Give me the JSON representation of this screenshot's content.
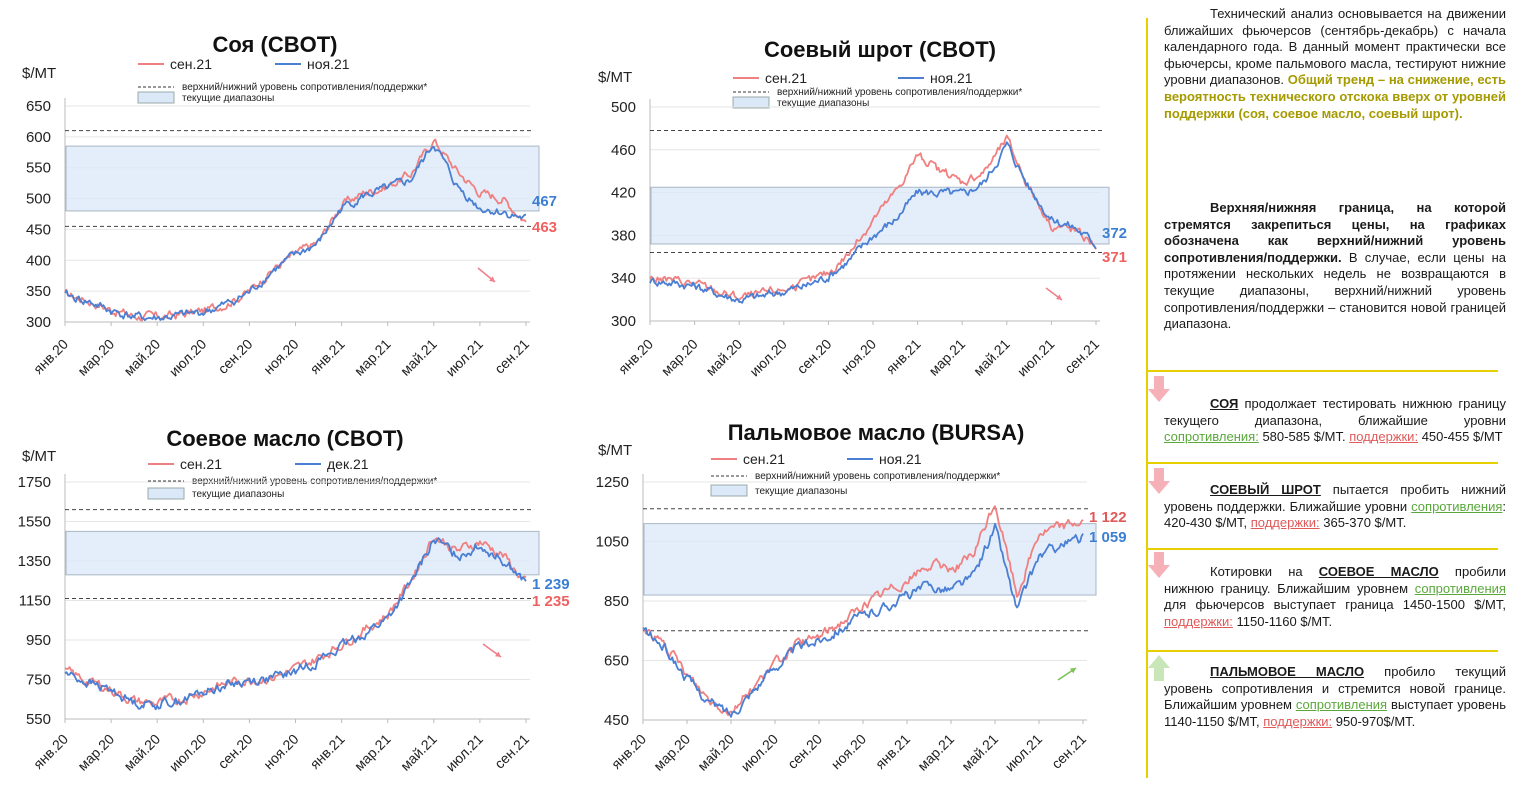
{
  "colors": {
    "red": "#f08080",
    "blue": "#4a7fd4",
    "band": "#dbe8f8",
    "down_arrow": "#f0808c",
    "up_arrow": "#7ac255",
    "divider": "#e8d000"
  },
  "charts": [
    {
      "id": "soy",
      "title": "Соя (CBOT)",
      "unit": "$/MT",
      "legend": {
        "s1": "сен.21",
        "s2": "ноя.21",
        "dash": "верхний/нижний уровень сопротивления/поддержки*",
        "band": "текущие диапазоны"
      },
      "yticks": [
        "650",
        "600",
        "550",
        "500",
        "450",
        "400",
        "350",
        "300"
      ],
      "xticks": [
        "янв.20",
        "мар.20",
        "май.20",
        "июл.20",
        "сен.20",
        "ноя.20",
        "янв.21",
        "мар.21",
        "май.21",
        "июл.21",
        "сен.21"
      ],
      "end_blue": "467",
      "end_red": "463",
      "trend": "down"
    },
    {
      "id": "meal",
      "title": "Соевый шрот (CBOT)",
      "unit": "$/MT",
      "legend": {
        "s1": "сен.21",
        "s2": "ноя.21",
        "dash": "верхний/нижний уровень сопротивления/поддержки*",
        "band": "текущие диапазоны"
      },
      "yticks": [
        "500",
        "460",
        "420",
        "380",
        "340",
        "300"
      ],
      "xticks": [
        "янв.20",
        "мар.20",
        "май.20",
        "июл.20",
        "сен.20",
        "ноя.20",
        "янв.21",
        "мар.21",
        "май.21",
        "июл.21",
        "сен.21"
      ],
      "end_blue": "372",
      "end_red": "371",
      "trend": "down"
    },
    {
      "id": "oil",
      "title": "Соевое масло (CBOT)",
      "unit": "$/MT",
      "legend": {
        "s1": "сен.21",
        "s2": "дек.21",
        "dash": "верхний/нижний уровень сопротивления/поддержки*",
        "band": "текущие диапазоны"
      },
      "yticks": [
        "1750",
        "1550",
        "1350",
        "1150",
        "950",
        "750",
        "550"
      ],
      "xticks": [
        "янв.20",
        "мар.20",
        "май.20",
        "июл.20",
        "сен.20",
        "ноя.20",
        "янв.21",
        "мар.21",
        "май.21",
        "июл.21",
        "сен.21"
      ],
      "end_blue": "1 239",
      "end_red": "1 235",
      "trend": "down"
    },
    {
      "id": "palm",
      "title": "Пальмовое масло (BURSA)",
      "unit": "$/MT",
      "legend": {
        "s1": "сен.21",
        "s2": "ноя.21",
        "dash": "верхний/нижний уровень сопротивления/поддержки*",
        "band": "текущие диапазоны"
      },
      "yticks": [
        "1250",
        "1050",
        "850",
        "650",
        "450"
      ],
      "xticks": [
        "янв.20",
        "мар.20",
        "май.20",
        "июл.20",
        "сен.20",
        "ноя.20",
        "янв.21",
        "мар.21",
        "май.21",
        "июл.21",
        "сен.21"
      ],
      "end_red": "1 122",
      "end_blue": "1 059",
      "trend": "up"
    }
  ],
  "chart_data": [
    {
      "type": "line",
      "title": "Соя (CBOT)",
      "ylabel": "$/MT",
      "ylim": [
        300,
        650
      ],
      "xlim": [
        "2020-01",
        "2021-09"
      ],
      "x": [
        "2020-01",
        "2020-02",
        "2020-03",
        "2020-04",
        "2020-05",
        "2020-06",
        "2020-07",
        "2020-08",
        "2020-09",
        "2020-10",
        "2020-11",
        "2020-12",
        "2021-01",
        "2021-02",
        "2021-03",
        "2021-04",
        "2021-05",
        "2021-06",
        "2021-07",
        "2021-08",
        "2021-09"
      ],
      "series": [
        {
          "name": "сен.21",
          "values": [
            345,
            335,
            320,
            310,
            308,
            312,
            318,
            330,
            350,
            385,
            410,
            430,
            490,
            510,
            520,
            540,
            595,
            545,
            510,
            500,
            463
          ]
        },
        {
          "name": "ноя.21",
          "values": [
            343,
            333,
            318,
            308,
            306,
            310,
            316,
            328,
            348,
            383,
            408,
            428,
            485,
            505,
            515,
            530,
            590,
            520,
            485,
            478,
            467
          ]
        }
      ],
      "resistance": 610,
      "support": 455,
      "range": [
        480,
        585
      ]
    },
    {
      "type": "line",
      "title": "Соевый шрот (CBOT)",
      "ylabel": "$/MT",
      "ylim": [
        300,
        500
      ],
      "xlim": [
        "2020-01",
        "2021-09"
      ],
      "x": [
        "2020-01",
        "2020-02",
        "2020-03",
        "2020-04",
        "2020-05",
        "2020-06",
        "2020-07",
        "2020-08",
        "2020-09",
        "2020-10",
        "2020-11",
        "2020-12",
        "2021-01",
        "2021-02",
        "2021-03",
        "2021-04",
        "2021-05",
        "2021-06",
        "2021-07",
        "2021-08",
        "2021-09"
      ],
      "series": [
        {
          "name": "сен.21",
          "values": [
            340,
            338,
            335,
            328,
            322,
            325,
            330,
            335,
            345,
            365,
            395,
            420,
            455,
            440,
            430,
            440,
            470,
            425,
            390,
            385,
            371
          ]
        },
        {
          "name": "ноя.21",
          "values": [
            338,
            336,
            333,
            326,
            320,
            323,
            328,
            333,
            342,
            358,
            380,
            395,
            420,
            420,
            418,
            430,
            465,
            425,
            395,
            388,
            372
          ]
        }
      ],
      "resistance": 478,
      "support": 364,
      "range": [
        372,
        425
      ]
    },
    {
      "type": "line",
      "title": "Соевое масло (CBOT)",
      "ylabel": "$/MT",
      "ylim": [
        550,
        1750
      ],
      "xlim": [
        "2020-01",
        "2021-09"
      ],
      "x": [
        "2020-01",
        "2020-02",
        "2020-03",
        "2020-04",
        "2020-05",
        "2020-06",
        "2020-07",
        "2020-08",
        "2020-09",
        "2020-10",
        "2020-11",
        "2020-12",
        "2021-01",
        "2021-02",
        "2021-03",
        "2021-04",
        "2021-05",
        "2021-06",
        "2021-07",
        "2021-08",
        "2021-09"
      ],
      "series": [
        {
          "name": "сен.21",
          "values": [
            790,
            740,
            700,
            640,
            630,
            650,
            690,
            730,
            750,
            760,
            800,
            860,
            930,
            1000,
            1080,
            1250,
            1480,
            1400,
            1450,
            1380,
            1235
          ]
        },
        {
          "name": "дек.21",
          "values": [
            785,
            735,
            695,
            635,
            625,
            645,
            685,
            725,
            745,
            755,
            790,
            850,
            915,
            985,
            1060,
            1230,
            1460,
            1380,
            1430,
            1360,
            1239
          ]
        }
      ],
      "resistance": 1610,
      "support": 1160,
      "range": [
        1280,
        1500
      ]
    },
    {
      "type": "line",
      "title": "Пальмовое масло (BURSA)",
      "ylabel": "$/MT",
      "ylim": [
        450,
        1250
      ],
      "xlim": [
        "2020-01",
        "2021-09"
      ],
      "x": [
        "2020-01",
        "2020-02",
        "2020-03",
        "2020-04",
        "2020-05",
        "2020-06",
        "2020-07",
        "2020-08",
        "2020-09",
        "2020-10",
        "2020-11",
        "2020-12",
        "2021-01",
        "2021-02",
        "2021-03",
        "2021-04",
        "2021-05",
        "2021-06",
        "2021-07",
        "2021-08",
        "2021-09"
      ],
      "series": [
        {
          "name": "сен.21",
          "values": [
            760,
            700,
            600,
            520,
            480,
            560,
            640,
            700,
            730,
            780,
            830,
            880,
            920,
            970,
            960,
            1000,
            1180,
            870,
            1080,
            1100,
            1122
          ]
        },
        {
          "name": "ноя.21",
          "values": [
            755,
            690,
            590,
            510,
            470,
            550,
            630,
            690,
            720,
            760,
            800,
            830,
            870,
            900,
            890,
            930,
            1100,
            820,
            1000,
            1040,
            1059
          ]
        }
      ],
      "resistance": 1160,
      "support": 750,
      "range": [
        870,
        1110
      ]
    }
  ],
  "sidebar": {
    "intro_plain": "Технический анализ основывается на движении ближайших фьючерсов (сентябрь-декабрь) с начала календарного года. В данный момент практически все фьючерсы, кроме пальмового масла, тестируют нижние уровни диапазонов.",
    "intro_trend": "Общий тренд – на снижение, есть вероятность технического отскока вверх от уровней поддержки (соя, соевое масло, соевый шрот).",
    "bounds_bold": "Верхняя/нижняя граница, на которой стремятся закрепиться цены, на графиках обозначена как верхний/нижний уровень сопротивления/поддержки.",
    "bounds_plain": "В случае, если цены на протяжении нескольких недель не возвращаются в текущие диапазоны, верхний/нижний уровень сопротивления/поддержки – становится новой границей диапазона.",
    "soy_name": "СОЯ",
    "soy_text": "продолжает тестировать нижнюю границу текущего диапазона, ближайшие уровни",
    "soy_res_label": "сопротивления:",
    "soy_res": "580-585 $/MT.",
    "soy_sup_label": "поддержки:",
    "soy_sup": "450-455 $/MT",
    "meal_name": "СОЕВЫЙ ШРОТ",
    "meal_text": "пытается пробить нижний уровень поддержки. Ближайшие уровни",
    "meal_res_label": "сопротивления",
    "meal_res": ": 420-430 $/MT,",
    "meal_sup_label": "поддержки:",
    "meal_sup": "365-370 $/MT.",
    "oil_pre": "Котировки на",
    "oil_name": "СОЕВОЕ МАСЛО",
    "oil_text": "пробили нижнюю границу. Ближайшим уровнем",
    "oil_res_label": "сопротивления",
    "oil_res": "для фьючерсов выступает граница 1450-1500 $/MT,",
    "oil_sup_label": "поддержки:",
    "oil_sup": "1150-1160 $/MT.",
    "palm_name": "ПАЛЬМОВОЕ МАСЛО",
    "palm_text": "пробило текущий уровень сопротивления и стремится новой границе. Ближайшим уровнем",
    "palm_res_label": "сопротивления",
    "palm_res": "выступает уровень 1140-1150 $/MT,",
    "palm_sup_label": "поддержки:",
    "palm_sup": "950-970$/MT."
  }
}
